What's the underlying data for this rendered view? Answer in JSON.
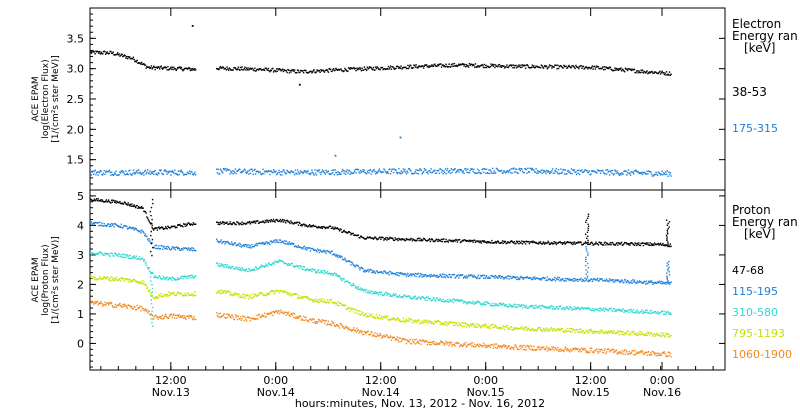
{
  "chart_data": [
    {
      "type": "scatter",
      "panel": "electron",
      "ylabel_lines": [
        "ACE EPAM",
        "log(Electron Flux)",
        "[1/(cm²s ster MeV)]"
      ],
      "ylim": [
        1.0,
        4.0
      ],
      "yticks": [
        1.5,
        2.0,
        2.5,
        3.0,
        3.5
      ],
      "ytick_labels": [
        "1.5",
        "2.0",
        "2.5",
        "3.0",
        "3.5"
      ],
      "legend_title": [
        "Electron",
        "Energy ran",
        "[keV]"
      ],
      "series": [
        {
          "name": "38-53",
          "color": "#000000",
          "segments": [
            {
              "x": [
                0.0,
                0.2,
                0.4,
                0.55,
                0.7,
                0.85,
                1.0
              ],
              "y": [
                3.28,
                3.27,
                3.18,
                3.03,
                3.02,
                3.01,
                3.0
              ]
            },
            {
              "x": [
                1.2,
                1.6,
                2.0,
                2.5,
                3.0,
                3.5,
                4.0,
                4.8,
                5.3,
                5.53
              ],
              "y": [
                3.02,
                3.0,
                2.96,
                3.0,
                3.04,
                3.07,
                3.05,
                3.03,
                2.96,
                2.93
              ]
            }
          ],
          "noise": 0.03
        },
        {
          "name": "175-315",
          "color": "#2080d8",
          "segments": [
            {
              "x": [
                0.0,
                0.5,
                1.0
              ],
              "y": [
                1.3,
                1.3,
                1.3
              ]
            },
            {
              "x": [
                1.2,
                2.0,
                3.0,
                4.0,
                5.0,
                5.53
              ],
              "y": [
                1.32,
                1.3,
                1.32,
                1.33,
                1.3,
                1.28
              ]
            }
          ],
          "noise": 0.045
        }
      ],
      "outliers": [
        {
          "x": 0.97,
          "y": 3.72,
          "color": "#000000"
        },
        {
          "x": 1.99,
          "y": 2.75,
          "color": "#000000"
        },
        {
          "x": 2.95,
          "y": 1.88,
          "color": "#2080d8"
        },
        {
          "x": 2.33,
          "y": 1.58,
          "color": "#2080d8"
        }
      ]
    },
    {
      "type": "scatter",
      "panel": "proton",
      "ylabel_lines": [
        "ACE EPAM",
        "log(Proton Flux)",
        "[1/(cm²s ster MeV)]"
      ],
      "ylim": [
        -0.9,
        5.2
      ],
      "yticks": [
        0,
        1,
        2,
        3,
        4,
        5
      ],
      "ytick_labels": [
        "0",
        "1",
        "2",
        "3",
        "4",
        "5"
      ],
      "legend_title": [
        "Proton",
        "Energy ran",
        "[keV]"
      ],
      "series": [
        {
          "name": "47-68",
          "color": "#000000",
          "segments": [
            {
              "x": [
                0.0,
                0.3,
                0.5,
                0.6,
                0.75,
                1.0
              ],
              "y": [
                4.9,
                4.8,
                4.6,
                3.9,
                3.95,
                4.1
              ]
            },
            {
              "x": [
                1.2,
                1.5,
                1.8,
                2.1,
                2.3,
                2.6,
                3.0,
                4.0,
                5.0,
                5.4,
                5.53
              ],
              "y": [
                4.1,
                4.1,
                4.2,
                4.0,
                3.95,
                3.6,
                3.55,
                3.45,
                3.4,
                3.38,
                3.35
              ]
            }
          ],
          "noise": 0.05
        },
        {
          "name": "115-195",
          "color": "#2080d8",
          "segments": [
            {
              "x": [
                0.0,
                0.3,
                0.5,
                0.6,
                0.75,
                1.0
              ],
              "y": [
                4.1,
                4.0,
                3.8,
                3.3,
                3.25,
                3.2
              ]
            },
            {
              "x": [
                1.2,
                1.5,
                1.8,
                2.1,
                2.3,
                2.6,
                3.0,
                4.0,
                5.0,
                5.53
              ],
              "y": [
                3.5,
                3.3,
                3.5,
                3.2,
                3.1,
                2.5,
                2.35,
                2.25,
                2.15,
                2.05
              ]
            }
          ],
          "noise": 0.06
        },
        {
          "name": "310-580",
          "color": "#30d8d0",
          "segments": [
            {
              "x": [
                0.0,
                0.3,
                0.5,
                0.6,
                0.75,
                1.0
              ],
              "y": [
                3.1,
                3.0,
                2.9,
                2.3,
                2.2,
                2.3
              ]
            },
            {
              "x": [
                1.2,
                1.5,
                1.8,
                2.1,
                2.3,
                2.6,
                3.0,
                4.0,
                5.0,
                5.53
              ],
              "y": [
                2.7,
                2.5,
                2.8,
                2.5,
                2.4,
                1.8,
                1.6,
                1.3,
                1.15,
                1.05
              ]
            }
          ],
          "noise": 0.06
        },
        {
          "name": "795-1193",
          "color": "#c8e000",
          "segments": [
            {
              "x": [
                0.0,
                0.3,
                0.5,
                0.6,
                0.75,
                1.0
              ],
              "y": [
                2.25,
                2.2,
                2.1,
                1.6,
                1.7,
                1.7
              ]
            },
            {
              "x": [
                1.2,
                1.5,
                1.8,
                2.1,
                2.3,
                2.6,
                3.0,
                4.0,
                5.0,
                5.53
              ],
              "y": [
                1.8,
                1.6,
                1.8,
                1.5,
                1.45,
                1.0,
                0.8,
                0.55,
                0.4,
                0.3
              ]
            }
          ],
          "noise": 0.07
        },
        {
          "name": "1060-1900",
          "color": "#f08a20",
          "segments": [
            {
              "x": [
                0.0,
                0.3,
                0.5,
                0.6,
                0.75,
                1.0
              ],
              "y": [
                1.4,
                1.3,
                1.2,
                0.9,
                0.95,
                0.9
              ]
            },
            {
              "x": [
                1.2,
                1.5,
                1.8,
                2.1,
                2.3,
                2.6,
                3.0,
                4.0,
                5.0,
                5.53
              ],
              "y": [
                1.0,
                0.85,
                1.1,
                0.8,
                0.7,
                0.4,
                0.1,
                -0.1,
                -0.25,
                -0.35
              ]
            }
          ],
          "noise": 0.08
        }
      ],
      "spikes": [
        {
          "x": 0.58,
          "ylow": 3.0,
          "yhigh": 4.9,
          "color": "#000000"
        },
        {
          "x": 0.58,
          "ylow": 0.6,
          "yhigh": 2.4,
          "color": "#30d8d0"
        },
        {
          "x": 4.73,
          "ylow": 3.45,
          "yhigh": 4.4,
          "color": "#000000"
        },
        {
          "x": 4.73,
          "ylow": 2.3,
          "yhigh": 3.3,
          "color": "#2080d8"
        },
        {
          "x": 5.5,
          "ylow": 3.4,
          "yhigh": 4.2,
          "color": "#000000"
        },
        {
          "x": 5.5,
          "ylow": 2.1,
          "yhigh": 2.8,
          "color": "#2080d8"
        }
      ]
    }
  ],
  "x_axis": {
    "xlim": [
      0,
      6.05
    ],
    "ticks": [
      {
        "x": 0.77,
        "time": "12:00",
        "date": "Nov.13"
      },
      {
        "x": 1.77,
        "time": "0:00",
        "date": "Nov.14"
      },
      {
        "x": 2.77,
        "time": "12:00",
        "date": "Nov.14"
      },
      {
        "x": 3.77,
        "time": "0:00",
        "date": "Nov.15"
      },
      {
        "x": 4.77,
        "time": "12:00",
        "date": "Nov.15"
      },
      {
        "x": 5.45,
        "time": "0:00",
        "date": "Nov.16"
      }
    ],
    "label": "hours:minutes, Nov. 13, 2012 - Nov. 16, 2012"
  }
}
